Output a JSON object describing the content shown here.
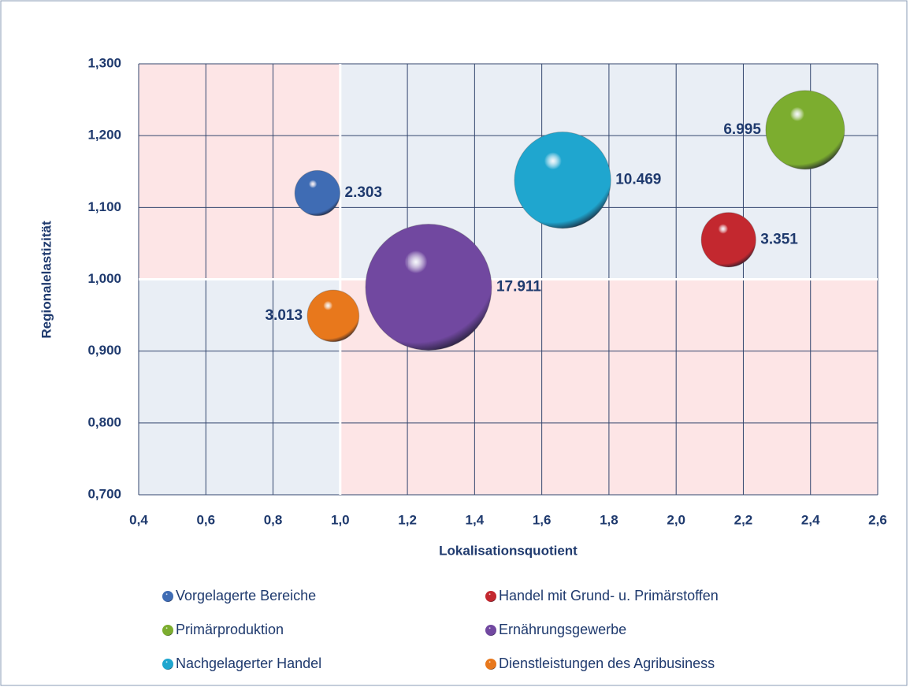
{
  "chart_data": {
    "type": "bubble",
    "x_label": "Lokalisationsquotient",
    "y_label": "Regionalelastizität",
    "xlim": [
      0.4,
      2.6
    ],
    "xticks": [
      {
        "value": 0.4,
        "label": "0,4"
      },
      {
        "value": 0.6,
        "label": "0,6"
      },
      {
        "value": 0.8,
        "label": "0,8"
      },
      {
        "value": 1.0,
        "label": "1,0"
      },
      {
        "value": 1.2,
        "label": "1,2"
      },
      {
        "value": 1.4,
        "label": "1,4"
      },
      {
        "value": 1.6,
        "label": "1,6"
      },
      {
        "value": 1.8,
        "label": "1,8"
      },
      {
        "value": 2.0,
        "label": "2,0"
      },
      {
        "value": 2.2,
        "label": "2,2"
      },
      {
        "value": 2.4,
        "label": "2,4"
      },
      {
        "value": 2.6,
        "label": "2,6"
      }
    ],
    "ylim": [
      0.7,
      1.3
    ],
    "yticks": [
      {
        "value": 0.7,
        "label": "0,700"
      },
      {
        "value": 0.8,
        "label": "0,800"
      },
      {
        "value": 0.9,
        "label": "0,900"
      },
      {
        "value": 1.0,
        "label": "1,000"
      },
      {
        "value": 1.1,
        "label": "1,100"
      },
      {
        "value": 1.2,
        "label": "1,200"
      },
      {
        "value": 1.3,
        "label": "1,300"
      }
    ],
    "grid": true,
    "legend": "bottom",
    "series": [
      {
        "name": "Vorgelagerte Bereiche",
        "color": "#3f6cb4",
        "x": 0.932,
        "y": 1.12,
        "size": 2303,
        "value_label": "2.303"
      },
      {
        "name": "Handel mit  Grund- u. Primärstoffen",
        "color": "#c3282f",
        "x": 2.156,
        "y": 1.055,
        "size": 3351,
        "value_label": "3.351"
      },
      {
        "name": "Primärproduktion",
        "color": "#7cad2f",
        "x": 2.384,
        "y": 1.208,
        "size": 6995,
        "value_label": "6.995"
      },
      {
        "name": "Ernährungsgewerbe",
        "color": "#7148a0",
        "x": 1.263,
        "y": 0.989,
        "size": 17911,
        "value_label": "17.911"
      },
      {
        "name": "Nachgelagerter Handel",
        "color": "#1fa6cf",
        "x": 1.662,
        "y": 1.138,
        "size": 10469,
        "value_label": "10.469"
      },
      {
        "name": "Dienstleistungen des Agribusiness",
        "color": "#e8781c",
        "x": 0.979,
        "y": 0.949,
        "size": 3013,
        "value_label": "3.013"
      }
    ]
  }
}
